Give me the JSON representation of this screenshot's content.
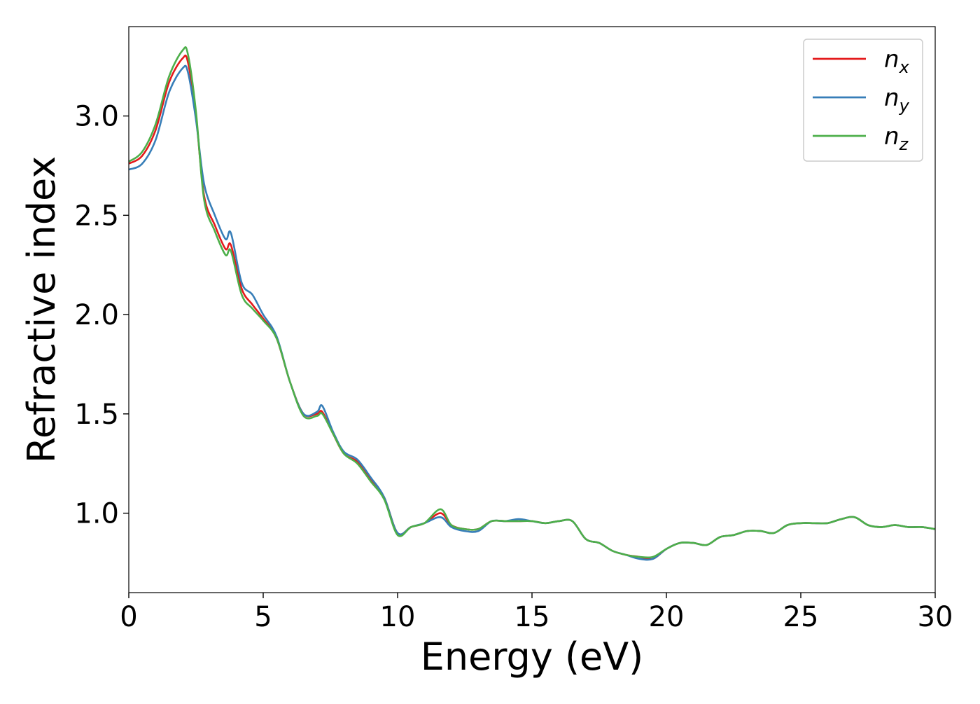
{
  "chart_data": {
    "type": "line",
    "title": "",
    "xlabel": "Energy (eV)",
    "ylabel": "Refractive index",
    "xlim": [
      0,
      30
    ],
    "ylim": [
      0.6,
      3.45
    ],
    "x_ticks": [
      "0",
      "5",
      "10",
      "15",
      "20",
      "25",
      "30"
    ],
    "y_ticks": [
      "1.0",
      "1.5",
      "2.0",
      "2.5",
      "3.0"
    ],
    "grid": false,
    "legend_position": "top-right",
    "x": [
      0,
      0.5,
      1.0,
      1.5,
      2.0,
      2.2,
      2.5,
      2.8,
      3.2,
      3.6,
      3.8,
      4.2,
      4.6,
      5.0,
      5.5,
      6.0,
      6.5,
      7.0,
      7.2,
      7.6,
      8.0,
      8.5,
      9.0,
      9.5,
      10.0,
      10.5,
      11.0,
      11.6,
      12.0,
      12.5,
      13.0,
      13.5,
      14.0,
      14.5,
      15.0,
      15.5,
      16.0,
      16.5,
      17.0,
      17.5,
      18.0,
      18.5,
      19.0,
      19.5,
      20.0,
      20.5,
      21.0,
      21.5,
      22.0,
      22.5,
      23.0,
      23.5,
      24.0,
      24.5,
      25.0,
      25.5,
      26.0,
      26.5,
      27.0,
      27.5,
      28.0,
      28.5,
      29.0,
      29.5,
      30.0
    ],
    "series": [
      {
        "name": "n_x",
        "color": "#e41a1c",
        "values": [
          2.76,
          2.8,
          2.93,
          3.17,
          3.29,
          3.27,
          3.0,
          2.6,
          2.45,
          2.33,
          2.35,
          2.13,
          2.05,
          1.98,
          1.88,
          1.66,
          1.5,
          1.5,
          1.51,
          1.4,
          1.3,
          1.26,
          1.17,
          1.08,
          0.9,
          0.93,
          0.95,
          1.0,
          0.94,
          0.92,
          0.92,
          0.96,
          0.96,
          0.96,
          0.96,
          0.95,
          0.96,
          0.96,
          0.87,
          0.85,
          0.81,
          0.79,
          0.78,
          0.77,
          0.82,
          0.85,
          0.85,
          0.84,
          0.88,
          0.89,
          0.91,
          0.91,
          0.9,
          0.94,
          0.95,
          0.95,
          0.95,
          0.97,
          0.98,
          0.94,
          0.93,
          0.94,
          0.93,
          0.93,
          0.92
        ]
      },
      {
        "name": "n_y",
        "color": "#377eb8",
        "values": [
          2.73,
          2.76,
          2.88,
          3.12,
          3.24,
          3.22,
          2.98,
          2.66,
          2.5,
          2.38,
          2.41,
          2.16,
          2.1,
          2.0,
          1.89,
          1.66,
          1.5,
          1.51,
          1.54,
          1.41,
          1.31,
          1.27,
          1.18,
          1.08,
          0.9,
          0.93,
          0.95,
          0.98,
          0.93,
          0.91,
          0.91,
          0.96,
          0.96,
          0.97,
          0.96,
          0.95,
          0.96,
          0.96,
          0.87,
          0.85,
          0.81,
          0.79,
          0.77,
          0.77,
          0.82,
          0.85,
          0.85,
          0.84,
          0.88,
          0.89,
          0.91,
          0.91,
          0.9,
          0.94,
          0.95,
          0.95,
          0.95,
          0.97,
          0.98,
          0.94,
          0.93,
          0.94,
          0.93,
          0.93,
          0.92
        ]
      },
      {
        "name": "n_z",
        "color": "#4daf4a",
        "values": [
          2.77,
          2.82,
          2.96,
          3.2,
          3.33,
          3.31,
          3.02,
          2.58,
          2.42,
          2.3,
          2.32,
          2.1,
          2.03,
          1.97,
          1.88,
          1.66,
          1.49,
          1.49,
          1.5,
          1.4,
          1.3,
          1.25,
          1.16,
          1.07,
          0.89,
          0.93,
          0.95,
          1.02,
          0.94,
          0.92,
          0.92,
          0.96,
          0.96,
          0.96,
          0.96,
          0.95,
          0.96,
          0.96,
          0.87,
          0.85,
          0.81,
          0.79,
          0.78,
          0.78,
          0.82,
          0.85,
          0.85,
          0.84,
          0.88,
          0.89,
          0.91,
          0.91,
          0.9,
          0.94,
          0.95,
          0.95,
          0.95,
          0.97,
          0.98,
          0.94,
          0.93,
          0.94,
          0.93,
          0.93,
          0.92
        ]
      }
    ],
    "legend": [
      {
        "symbol": "n",
        "subscript": "x",
        "color": "#e41a1c"
      },
      {
        "symbol": "n",
        "subscript": "y",
        "color": "#377eb8"
      },
      {
        "symbol": "n",
        "subscript": "z",
        "color": "#4daf4a"
      }
    ]
  }
}
